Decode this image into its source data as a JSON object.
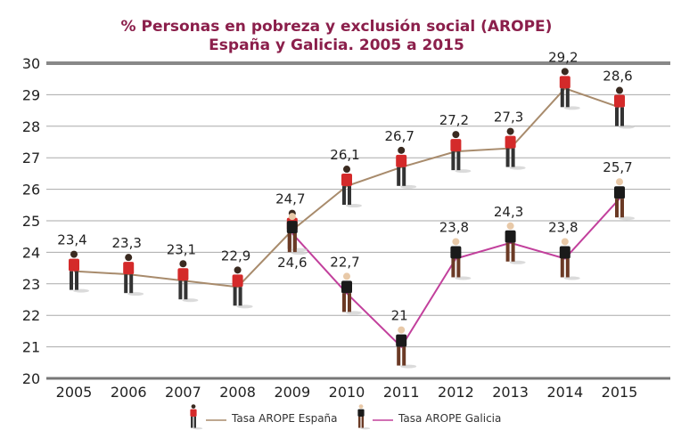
{
  "chart_data": {
    "type": "line",
    "title": "% Personas en pobreza y exclusión social (AROPE)",
    "subtitle": "España y Galicia. 2005 a 2015",
    "categories": [
      "2005",
      "2006",
      "2007",
      "2008",
      "2009",
      "2010",
      "2011",
      "2012",
      "2013",
      "2014",
      "2015"
    ],
    "ylim": [
      20,
      30
    ],
    "yticks": [
      "20",
      "21",
      "22",
      "23",
      "24",
      "25",
      "26",
      "27",
      "28",
      "29",
      "30"
    ],
    "grid": true,
    "legend_position": "bottom",
    "series": [
      {
        "name": "Tasa AROPE España",
        "color": "#a88b6c",
        "icon": "person-red-shirt",
        "values": [
          23.4,
          23.3,
          23.1,
          22.9,
          24.7,
          26.1,
          26.7,
          27.2,
          27.3,
          29.2,
          28.6
        ],
        "labels": [
          "23,4",
          "23,3",
          "23,1",
          "22,9",
          "24,7",
          "26,1",
          "26,7",
          "27,2",
          "27,3",
          "29,2",
          "28,6"
        ]
      },
      {
        "name": "Tasa AROPE Galicia",
        "color": "#c2409c",
        "icon": "person-black-shirt",
        "values": [
          null,
          null,
          null,
          null,
          24.6,
          22.7,
          21,
          23.8,
          24.3,
          23.8,
          25.7
        ],
        "labels": [
          "",
          "",
          "",
          "",
          "24,6",
          "22,7",
          "21",
          "23,8",
          "24,3",
          "23,8",
          "25,7"
        ]
      }
    ]
  }
}
